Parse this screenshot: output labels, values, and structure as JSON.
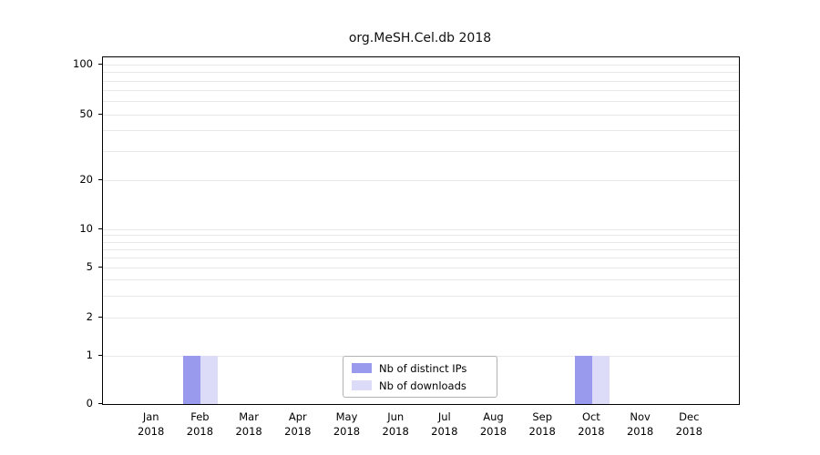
{
  "chart_data": {
    "type": "bar",
    "title": "org.MeSH.Cel.db 2018",
    "categories": [
      "Jan",
      "Feb",
      "Mar",
      "Apr",
      "May",
      "Jun",
      "Jul",
      "Aug",
      "Sep",
      "Oct",
      "Nov",
      "Dec"
    ],
    "category_year": "2018",
    "series": [
      {
        "name": "Nb of distinct IPs",
        "color": "#9999ee",
        "values": [
          0,
          1,
          0,
          0,
          0,
          0,
          0,
          0,
          0,
          1,
          0,
          0
        ]
      },
      {
        "name": "Nb of downloads",
        "color": "#dcdcf8",
        "values": [
          0,
          1,
          0,
          0,
          0,
          0,
          0,
          0,
          0,
          1,
          0,
          0
        ]
      }
    ],
    "yticks": [
      100,
      50,
      20,
      10,
      5,
      2,
      1,
      0
    ],
    "ylim": [
      0,
      100
    ],
    "yscale": "log-like",
    "grid": true,
    "legend_position": "bottom-center",
    "grid_color": "#e8e8e8",
    "axis_color": "#000000",
    "legend_border_color": "#b3b3b3"
  }
}
